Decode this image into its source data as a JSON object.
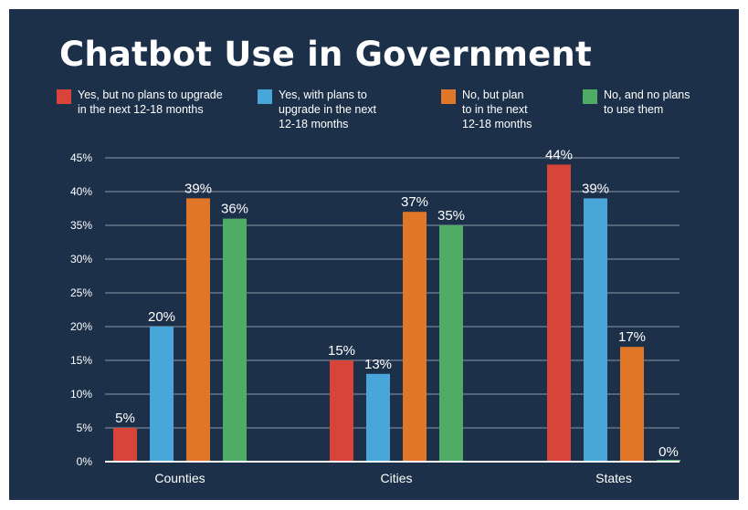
{
  "chart_data": {
    "type": "bar",
    "title": "Chatbot Use in Government",
    "xlabel": "",
    "ylabel": "",
    "ylim": [
      0,
      45
    ],
    "yticks": [
      "0%",
      "5%",
      "10%",
      "15%",
      "20%",
      "25%",
      "30%",
      "35%",
      "40%",
      "45%"
    ],
    "grid": true,
    "legend_position": "top",
    "categories": [
      "Counties",
      "Cities",
      "States"
    ],
    "series": [
      {
        "name": "Yes, but no plans to upgrade\nin the next 12-18 months",
        "color": "#d9443a",
        "values": [
          5,
          15,
          44
        ],
        "labels": [
          "5%",
          "15%",
          "44%"
        ]
      },
      {
        "name": "Yes, with plans to\nupgrade in the next\n12-18 months",
        "color": "#49a6d8",
        "values": [
          20,
          13,
          39
        ],
        "labels": [
          "20%",
          "13%",
          "39%"
        ]
      },
      {
        "name": "No, but plan\nto in the next\n12-18 months",
        "color": "#e07628",
        "values": [
          39,
          37,
          17
        ],
        "labels": [
          "39%",
          "37%",
          "17%"
        ]
      },
      {
        "name": "No, and no plans\nto use them",
        "color": "#4fac64",
        "values": [
          36,
          35,
          0
        ],
        "labels": [
          "36%",
          "35%",
          "0%"
        ]
      }
    ]
  },
  "colors": {
    "background": "#1d3049",
    "grid": "#8b98a9",
    "text": "#ffffff"
  }
}
